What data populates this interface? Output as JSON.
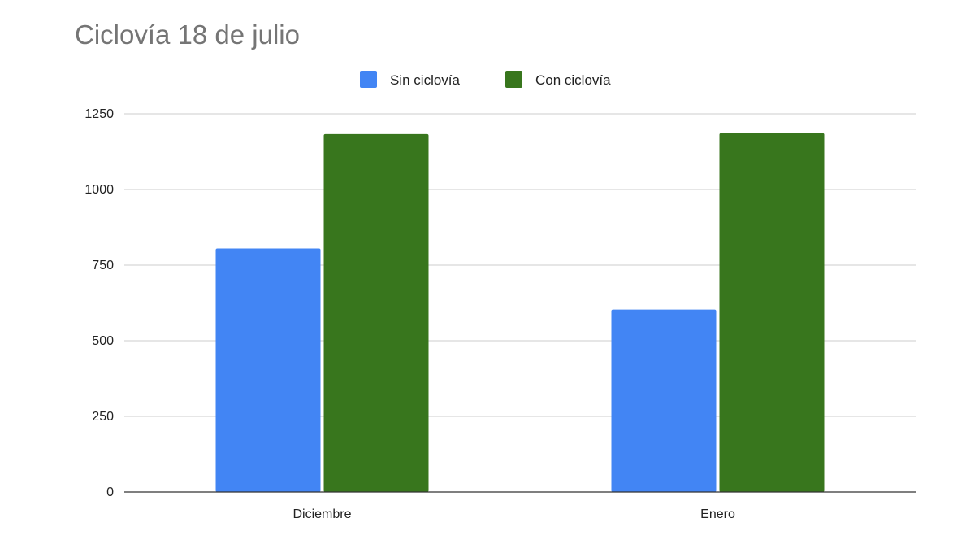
{
  "chart_data": {
    "type": "bar",
    "title": "Ciclovía 18 de julio",
    "xlabel": "",
    "ylabel": "",
    "categories": [
      "Diciembre",
      "Enero"
    ],
    "series": [
      {
        "name": "Sin ciclovía",
        "values": [
          805,
          603
        ],
        "color": "#4285f4"
      },
      {
        "name": "Con ciclovía",
        "values": [
          1183,
          1186
        ],
        "color": "#38761d"
      }
    ],
    "ylim": [
      0,
      1250
    ],
    "yticks": [
      0,
      250,
      500,
      750,
      1000,
      1250
    ],
    "grid": true,
    "legend": "top-center"
  }
}
